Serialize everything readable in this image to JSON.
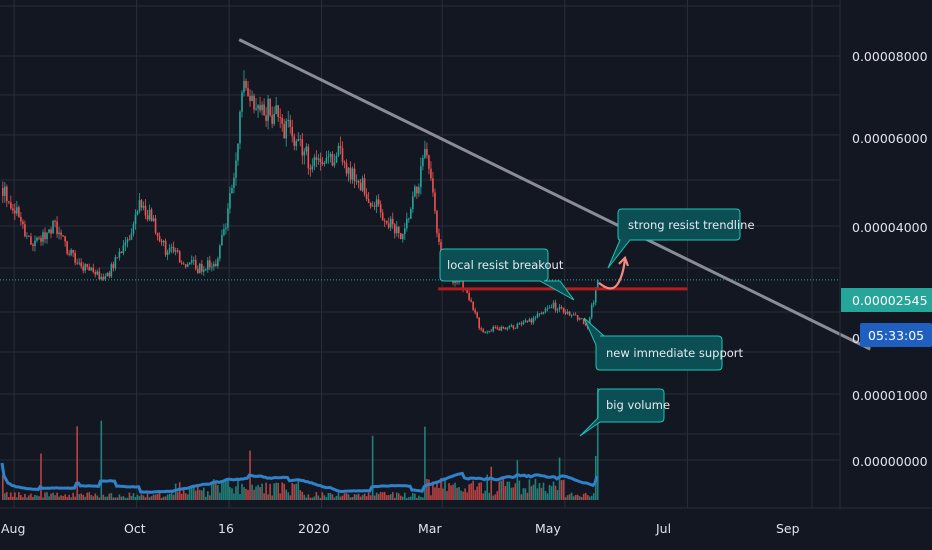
{
  "chart_data": {
    "type": "candlestick",
    "y_ticks": [
      "0.00008000",
      "0.00006000",
      "0.00004000",
      "0.00001000",
      "0.00000000"
    ],
    "x_ticks": [
      "Aug",
      "Oct",
      "16",
      "2020",
      "Mar",
      "May",
      "Jul",
      "Sep"
    ],
    "last_price_label": "0.00002545",
    "countdown_label": "05:33:05",
    "hidden_price_fragment": "0.",
    "price_path": [
      {
        "date": "2019-07-26",
        "price": 4.78e-05
      },
      {
        "date": "2019-08-10",
        "price": 3.4e-05
      },
      {
        "date": "2019-08-20",
        "price": 3.9e-05
      },
      {
        "date": "2019-09-01",
        "price": 2.9e-05
      },
      {
        "date": "2019-09-15",
        "price": 2.6e-05
      },
      {
        "date": "2019-09-28",
        "price": 3.6e-05
      },
      {
        "date": "2019-10-03",
        "price": 4.5e-05
      },
      {
        "date": "2019-10-15",
        "price": 3.3e-05
      },
      {
        "date": "2019-11-01",
        "price": 2.8e-05
      },
      {
        "date": "2019-11-10",
        "price": 3e-05
      },
      {
        "date": "2019-11-17",
        "price": 4.7e-05
      },
      {
        "date": "2019-11-23",
        "price": 7.2e-05
      },
      {
        "date": "2019-12-10",
        "price": 6.5e-05
      },
      {
        "date": "2019-12-25",
        "price": 5.5e-05
      },
      {
        "date": "2020-01-10",
        "price": 5.6e-05
      },
      {
        "date": "2020-01-25",
        "price": 4.5e-05
      },
      {
        "date": "2020-02-10",
        "price": 3.5e-05
      },
      {
        "date": "2020-02-22",
        "price": 5.7e-05
      },
      {
        "date": "2020-02-29",
        "price": 3e-05
      },
      {
        "date": "2020-03-05",
        "price": 2.5e-05
      },
      {
        "date": "2020-03-10",
        "price": 2.55e-05
      },
      {
        "date": "2020-03-20",
        "price": 1.3e-05
      },
      {
        "date": "2020-04-10",
        "price": 1.45e-05
      },
      {
        "date": "2020-04-25",
        "price": 1.9e-05
      },
      {
        "date": "2020-05-05",
        "price": 1.7e-05
      },
      {
        "date": "2020-05-12",
        "price": 1.4e-05
      },
      {
        "date": "2020-05-17",
        "price": 2.54e-05
      }
    ],
    "resistance_trendline": [
      {
        "date": "2019-11-21",
        "price": 8.4e-05
      },
      {
        "date": "2020-09-30",
        "price": 8.5e-06
      }
    ],
    "support_line": {
      "start": "2020-02-28",
      "end": "2020-07-01",
      "price": 2.32e-05
    },
    "colors": {
      "background": "#131722",
      "grid": "#2a2e39",
      "up_candle": "#26a69a",
      "down_candle": "#ef5350",
      "volume_ma": "#2f82c9",
      "trendline": "#8a8d96",
      "support": "#b71c1c",
      "arrow": "#f28b82",
      "annotation_bg": "#0b4f54",
      "annotation_border": "#1ec5b4",
      "price_marker": "#26a69a"
    },
    "annotations": [
      {
        "id": "strong-resist",
        "text": "strong resist trendline"
      },
      {
        "id": "local-resist",
        "text": "local resist breakout"
      },
      {
        "id": "immediate-support",
        "text": "new immediate support"
      },
      {
        "id": "big-volume",
        "text": "big volume"
      }
    ]
  }
}
